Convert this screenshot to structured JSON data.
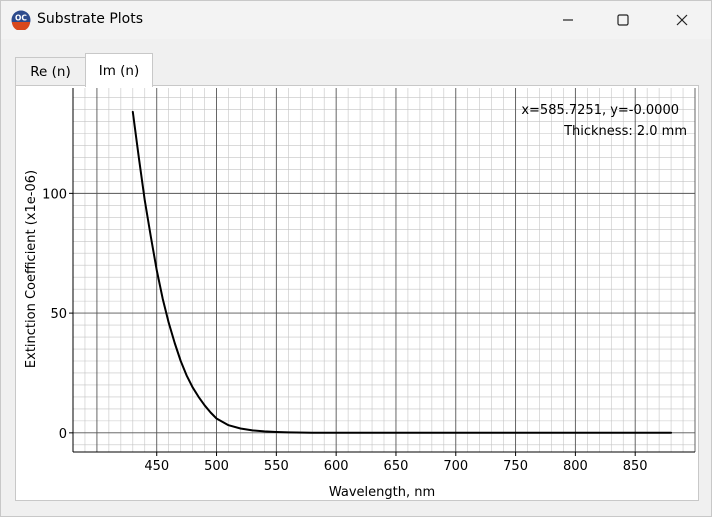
{
  "window": {
    "title": "Substrate Plots",
    "icon": "oc-app-icon",
    "controls": [
      "minimize-icon",
      "maximize-icon",
      "close-icon"
    ]
  },
  "tabs": [
    {
      "label": "Re (n)",
      "active": false
    },
    {
      "label": "Im (n)",
      "active": true
    }
  ],
  "readout": {
    "cursor": "x=585.7251, y=-0.0000",
    "thickness": "Thickness: 2.0 mm"
  },
  "chart_data": {
    "type": "line",
    "title": "",
    "xlabel": "Wavelength, nm",
    "ylabel": "Extinction Coefficient (x1e-06)",
    "xlim": [
      380,
      900
    ],
    "ylim": [
      -8,
      144
    ],
    "x_ticks": [
      450,
      500,
      550,
      600,
      650,
      700,
      750,
      800,
      850
    ],
    "y_ticks": [
      0,
      50,
      100
    ],
    "grid": true,
    "legend": "none",
    "series": [
      {
        "color": "#000000",
        "x": [
          430,
          435,
          440,
          445,
          450,
          455,
          460,
          465,
          470,
          475,
          480,
          485,
          490,
          495,
          500,
          510,
          520,
          530,
          540,
          550,
          560,
          580,
          600,
          650,
          700,
          750,
          800,
          850,
          880
        ],
        "y": [
          134,
          115,
          97,
          82,
          68,
          56,
          46,
          37.5,
          30,
          24,
          19,
          15,
          11.5,
          8.5,
          6,
          3.2,
          1.8,
          1.0,
          0.6,
          0.35,
          0.2,
          0.07,
          0.03,
          0.01,
          0,
          0,
          0,
          0,
          0
        ]
      }
    ]
  }
}
